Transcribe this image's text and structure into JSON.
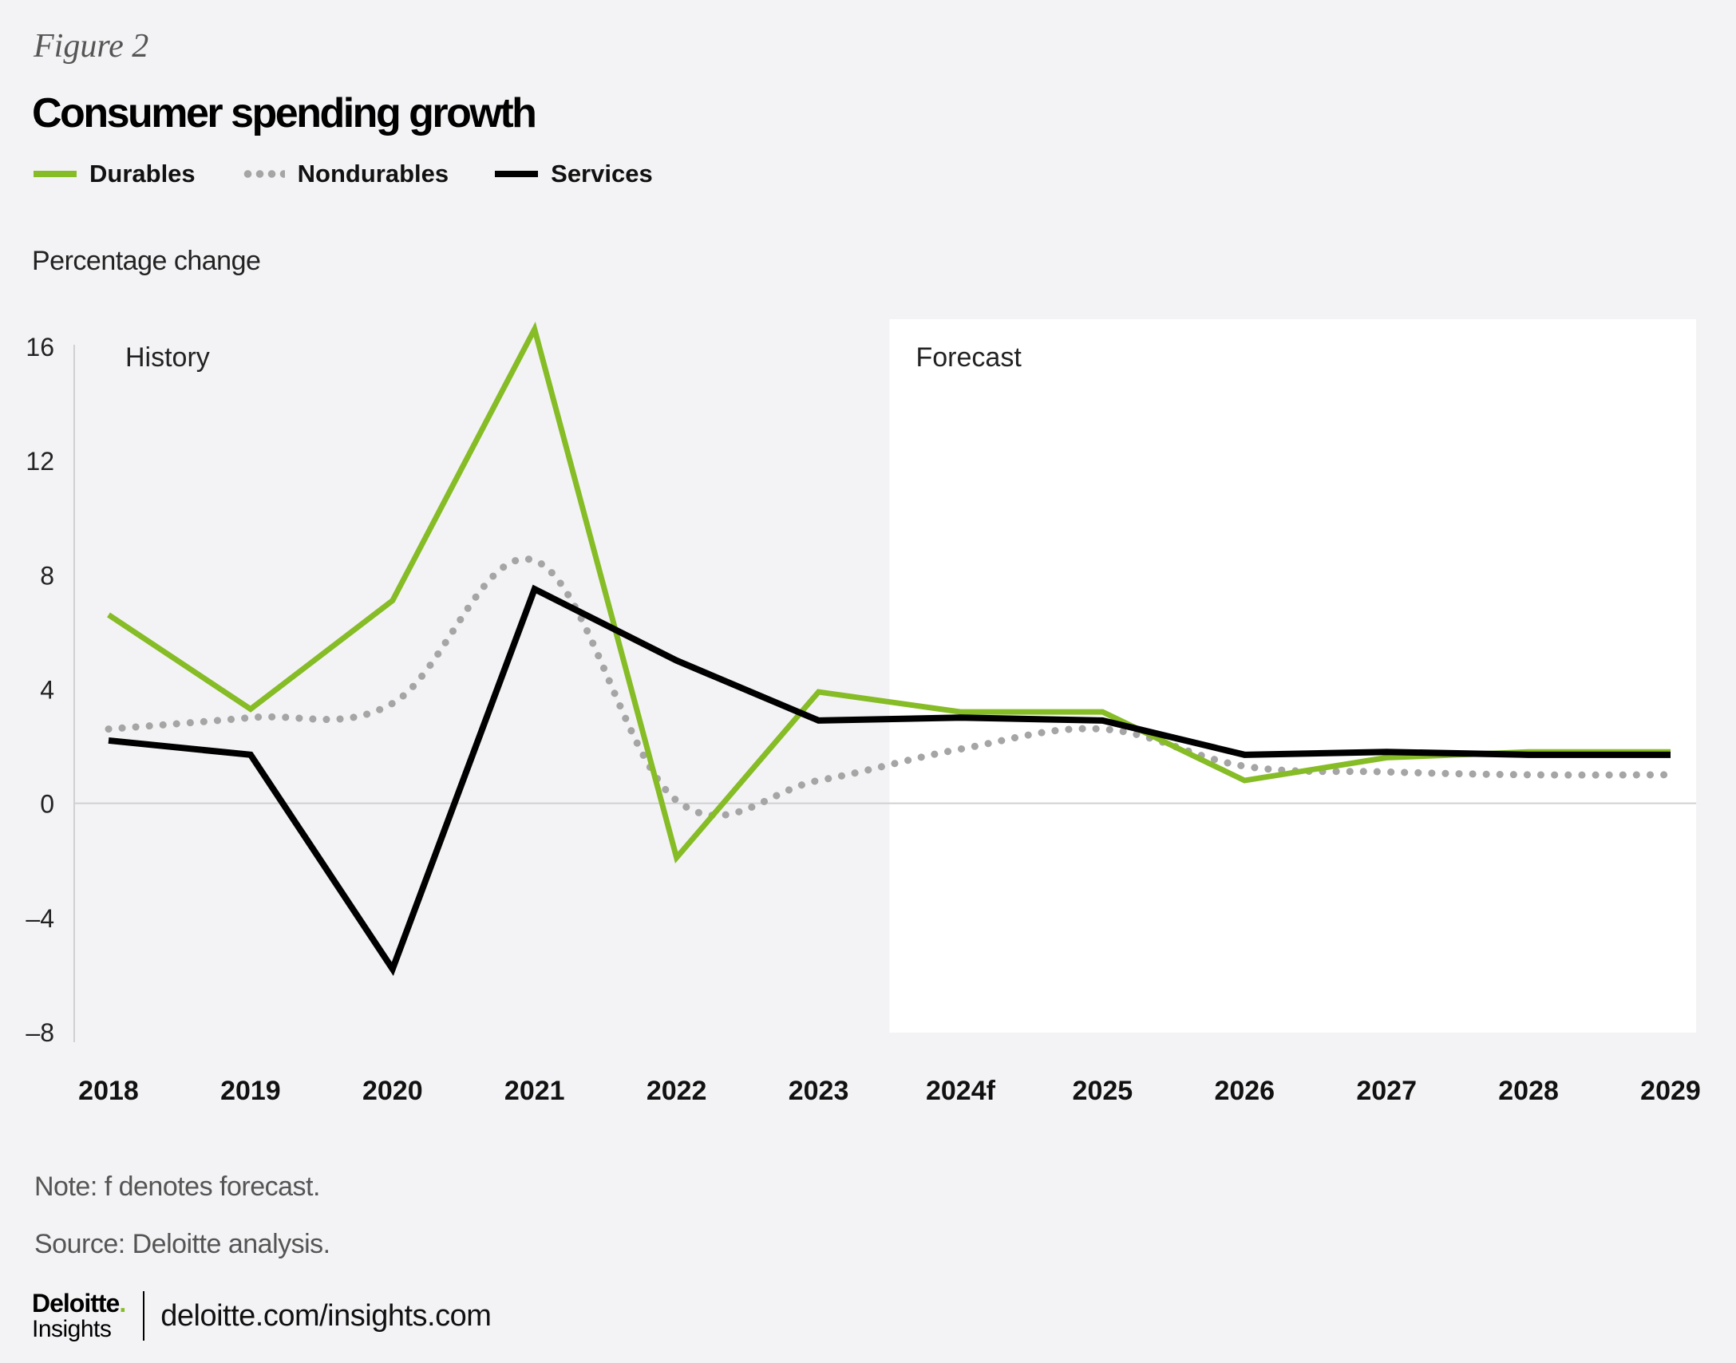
{
  "figure_label": "Figure 2",
  "footer": {
    "brand_name": "Deloitte",
    "brand_dot": ".",
    "brand_sub": "Insights",
    "url": "deloitte.com/insights.com"
  },
  "notes": {
    "note": "Note: f denotes forecast.",
    "source": "Source: Deloitte analysis."
  },
  "colors": {
    "durables": "#86bc25",
    "nondurables": "#a5a5a5",
    "services": "#000000",
    "background": "#f3f3f5",
    "forecast_panel": "#ffffff",
    "zero_line": "#d0d0d0"
  },
  "chart_data": {
    "type": "line",
    "title": "Consumer spending growth",
    "xlabel": "",
    "ylabel": "Percentage change",
    "categories": [
      "2018",
      "2019",
      "2020",
      "2021",
      "2022",
      "2023",
      "2024f",
      "2025",
      "2026",
      "2027",
      "2028",
      "2029"
    ],
    "ylim": [
      -8,
      16
    ],
    "yticks": [
      16,
      12,
      8,
      4,
      0,
      -4,
      -8
    ],
    "ytick_labels": [
      "16",
      "12",
      "8",
      "4",
      "0",
      "–4",
      "–8"
    ],
    "grid": false,
    "legend_position": "top-left",
    "regions": [
      {
        "label": "History",
        "from": "2018",
        "to": "2023"
      },
      {
        "label": "Forecast",
        "from": "2024f",
        "to": "2029"
      }
    ],
    "series": [
      {
        "name": "Durables",
        "style": "solid",
        "values": [
          6.6,
          3.3,
          7.1,
          16.6,
          -1.9,
          3.9,
          3.2,
          3.2,
          0.8,
          1.6,
          1.8,
          1.8
        ]
      },
      {
        "name": "Nondurables",
        "style": "dotted",
        "values": [
          2.6,
          3.0,
          3.5,
          8.5,
          0.1,
          0.8,
          1.9,
          2.6,
          1.3,
          1.1,
          1.0,
          1.0
        ]
      },
      {
        "name": "Services",
        "style": "solid",
        "values": [
          2.2,
          1.7,
          -5.8,
          7.5,
          5.0,
          2.9,
          3.0,
          2.9,
          1.7,
          1.8,
          1.7,
          1.7
        ]
      }
    ]
  }
}
